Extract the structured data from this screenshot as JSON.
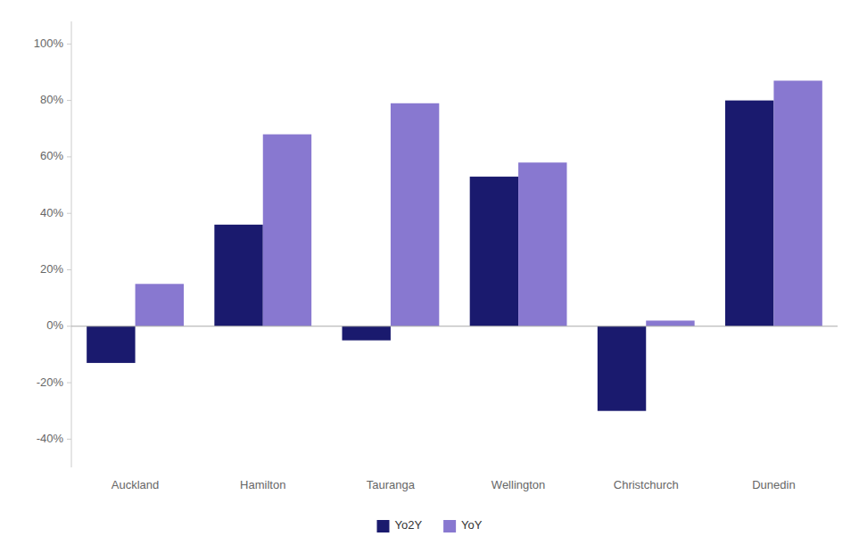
{
  "chart_data": {
    "type": "bar",
    "categories": [
      "Auckland",
      "Hamilton",
      "Tauranga",
      "Wellington",
      "Christchurch",
      "Dunedin"
    ],
    "series": [
      {
        "name": "Yo2Y",
        "color": "#1a1a6e",
        "values": [
          -0.13,
          0.36,
          -0.05,
          0.53,
          -0.3,
          0.8
        ]
      },
      {
        "name": "YoY",
        "color": "#8878d0",
        "values": [
          0.15,
          0.68,
          0.79,
          0.58,
          0.02,
          0.87
        ]
      }
    ],
    "ylim": [
      -0.5,
      1.08
    ],
    "yticks": [
      {
        "value": -0.4,
        "label": "-40%"
      },
      {
        "value": -0.2,
        "label": "-20%"
      },
      {
        "value": 0.0,
        "label": "0%"
      },
      {
        "value": 0.2,
        "label": "20%"
      },
      {
        "value": 0.4,
        "label": "40%"
      },
      {
        "value": 0.6,
        "label": "60%"
      },
      {
        "value": 0.8,
        "label": "80%"
      },
      {
        "value": 1.0,
        "label": "100%"
      }
    ],
    "grid": false,
    "legend": "bottom"
  }
}
